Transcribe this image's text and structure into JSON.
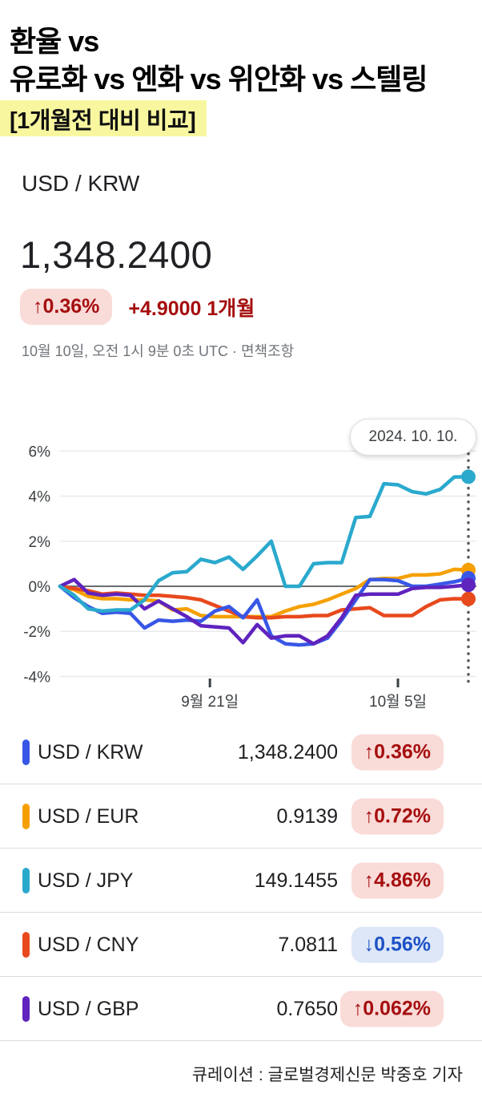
{
  "header": {
    "title_line1": "환율 vs",
    "title_line2": "유로화 vs 엔화 vs 위안화 vs 스텔링",
    "highlight": "[1개월전 대비 비교]"
  },
  "quote": {
    "pair": "USD / KRW",
    "price": "1,348.2400",
    "change_badge": "↑0.36%",
    "change_detail": "+4.9000 1개월",
    "timestamp": "10월 10일, 오전 1시 9분 0초 UTC · 면책조항"
  },
  "chart_data": {
    "type": "line",
    "tooltip": "2024. 10. 10.",
    "ylim": [
      -4,
      6
    ],
    "grid": true,
    "legend_position": "below",
    "y_ticks": [
      {
        "label": "6%",
        "value": 6
      },
      {
        "label": "4%",
        "value": 4
      },
      {
        "label": "2%",
        "value": 2
      },
      {
        "label": "0%",
        "value": 0
      },
      {
        "label": "-2%",
        "value": -2
      },
      {
        "label": "-4%",
        "value": -4
      }
    ],
    "x_ticks": [
      {
        "label": "9월 21일",
        "pos": 0.367
      },
      {
        "label": "10월 5일",
        "pos": 0.8275
      }
    ],
    "unit": "percent change over 1 month",
    "series": [
      {
        "name": "USD / EUR",
        "color": "#F5A000",
        "values": [
          0,
          -0.15,
          -0.45,
          -0.55,
          -0.55,
          -0.6,
          -0.6,
          -0.65,
          -1.05,
          -1.0,
          -1.3,
          -1.35,
          -1.35,
          -1.35,
          -1.35,
          -1.35,
          -1.1,
          -0.9,
          -0.8,
          -0.6,
          -0.35,
          -0.1,
          0.3,
          0.35,
          0.35,
          0.5,
          0.5,
          0.55,
          0.75,
          0.72
        ]
      },
      {
        "name": "USD / CNY",
        "color": "#E8491D",
        "values": [
          0,
          -0.1,
          -0.2,
          -0.35,
          -0.3,
          -0.35,
          -0.4,
          -0.4,
          -0.45,
          -0.5,
          -0.6,
          -0.85,
          -1.1,
          -1.35,
          -1.4,
          -1.4,
          -1.35,
          -1.35,
          -1.3,
          -1.3,
          -1.05,
          -1.0,
          -0.95,
          -1.3,
          -1.3,
          -1.3,
          -0.9,
          -0.6,
          -0.55,
          -0.56
        ]
      },
      {
        "name": "USD / KRW",
        "color": "#3857E6",
        "values": [
          0,
          -0.5,
          -0.9,
          -1.2,
          -1.15,
          -1.2,
          -1.85,
          -1.5,
          -1.55,
          -1.5,
          -1.55,
          -1.1,
          -0.9,
          -1.4,
          -0.6,
          -2.2,
          -2.55,
          -2.6,
          -2.55,
          -2.3,
          -1.5,
          -0.6,
          0.3,
          0.3,
          0.25,
          0.0,
          0.0,
          0.1,
          0.2,
          0.36
        ]
      },
      {
        "name": "USD / GBP",
        "color": "#5F23BE",
        "values": [
          0,
          0.3,
          -0.3,
          -0.4,
          -0.35,
          -0.4,
          -1.0,
          -0.65,
          -1.0,
          -1.35,
          -1.75,
          -1.8,
          -1.85,
          -2.5,
          -1.7,
          -2.3,
          -2.2,
          -2.2,
          -2.55,
          -2.2,
          -1.4,
          -0.4,
          -0.35,
          -0.35,
          -0.35,
          -0.1,
          -0.05,
          -0.05,
          0.0,
          0.06
        ]
      },
      {
        "name": "USD / JPY",
        "color": "#2AA9CD",
        "values": [
          0,
          -0.4,
          -1.0,
          -1.1,
          -1.05,
          -1.05,
          -0.6,
          0.25,
          0.6,
          0.65,
          1.2,
          1.05,
          1.3,
          0.75,
          1.35,
          2.0,
          0.0,
          0.0,
          1.0,
          1.05,
          1.05,
          3.05,
          3.1,
          4.55,
          4.5,
          4.2,
          4.1,
          4.3,
          4.85,
          4.86
        ]
      }
    ]
  },
  "legend_rows": [
    {
      "pair": "USD / KRW",
      "value": "1,348.2400",
      "change": "↑0.36%",
      "direction": "up",
      "color": "#3857E6"
    },
    {
      "pair": "USD / EUR",
      "value": "0.9139",
      "change": "↑0.72%",
      "direction": "up",
      "color": "#F5A000"
    },
    {
      "pair": "USD / JPY",
      "value": "149.1455",
      "change": "↑4.86%",
      "direction": "up",
      "color": "#2AA9CD"
    },
    {
      "pair": "USD / CNY",
      "value": "7.0811",
      "change": "↓0.56%",
      "direction": "down",
      "color": "#E8491D"
    },
    {
      "pair": "USD / GBP",
      "value": "0.7650",
      "change": "↑0.062%",
      "direction": "up",
      "color": "#5F23BE"
    }
  ],
  "footer": {
    "caption": "큐레이션 : 글로벌경제신문 박중호 기자"
  },
  "colors": {
    "up_bg": "#F9DBD8",
    "up_text": "#A50E0E",
    "down_bg": "#DDE7F8",
    "down_text": "#1C51C5",
    "highlight_bg": "#F8F7A0",
    "grid": "#E8EAED",
    "zero_line": "#6A6D70",
    "y_label": "#3C4043",
    "x_label": "#3C4043",
    "dotted_line": "#55585C"
  }
}
